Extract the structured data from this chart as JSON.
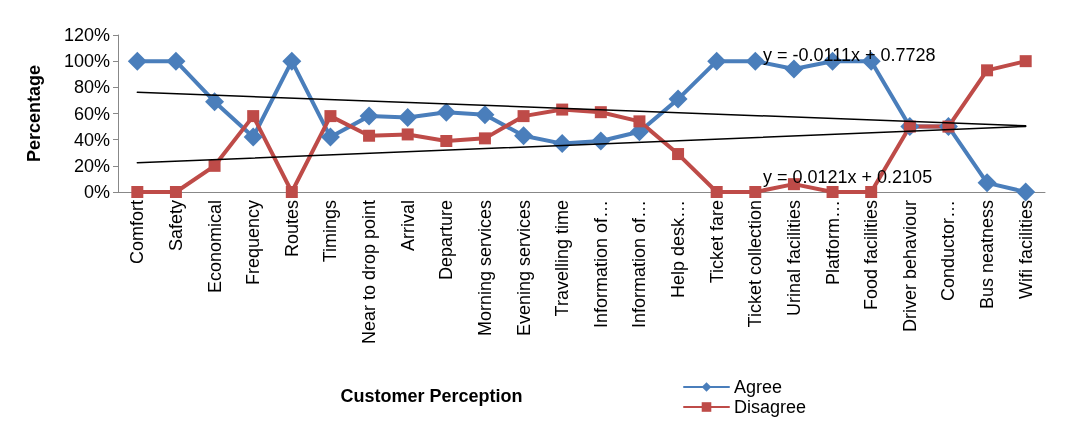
{
  "chart_data": {
    "type": "line",
    "ylabel": "Percentage",
    "xlabel": "Customer Perception",
    "categories": [
      "Comfort",
      "Safety",
      "Economical",
      "Frequency",
      "Routes",
      "Timings",
      "Near to drop point",
      "Arrival",
      "Departure",
      "Morning services",
      "Evening services",
      "Travelling time",
      "Information of…",
      "Information of…",
      "Help desk…",
      "Ticket fare",
      "Ticket collection",
      "Urinal facilities",
      "Platform…",
      "Food facilities",
      "Driver behaviour",
      "Conductor…",
      "Bus neatness",
      "Wifi facilities"
    ],
    "series": [
      {
        "name": "Agree",
        "color": "#4a7ebb",
        "marker": "diamond",
        "values": [
          100,
          100,
          69,
          42,
          100,
          42,
          58,
          57,
          61,
          59,
          43,
          37,
          39,
          46,
          71,
          100,
          100,
          94,
          100,
          100,
          50,
          50,
          7,
          0
        ]
      },
      {
        "name": "Disagree",
        "color": "#be4b48",
        "marker": "square",
        "values": [
          0,
          0,
          20,
          58,
          0,
          58,
          43,
          44,
          39,
          41,
          58,
          63,
          61,
          54,
          29,
          0,
          0,
          6,
          0,
          0,
          50,
          50,
          93,
          100
        ]
      },
      {
        "type": "line",
        "color": "#000000",
        "marker": "none",
        "x": [
          "Comfort",
          "Wifi facilities"
        ],
        "values": [
          76.2,
          50.6
        ]
      },
      {
        "type": "line",
        "color": "#000000",
        "marker": "none",
        "x": [
          "Comfort",
          "Wifi facilities"
        ],
        "values": [
          22.3,
          50.1
        ]
      }
    ],
    "ylim": [
      0,
      120
    ],
    "yticks": [
      {
        "value": 0,
        "label": "0%"
      },
      {
        "value": 20,
        "label": "20%"
      },
      {
        "value": 40,
        "label": "40%"
      },
      {
        "value": 60,
        "label": "60%"
      },
      {
        "value": 80,
        "label": "80%"
      },
      {
        "value": 100,
        "label": "100%"
      },
      {
        "value": 120,
        "label": "120%"
      }
    ],
    "annotations": [
      "y = -0.0111x + 0.7728",
      "y = 0.0121x + 0.2105"
    ],
    "legend": "bottom",
    "grid": false,
    "line_style": "solid"
  }
}
